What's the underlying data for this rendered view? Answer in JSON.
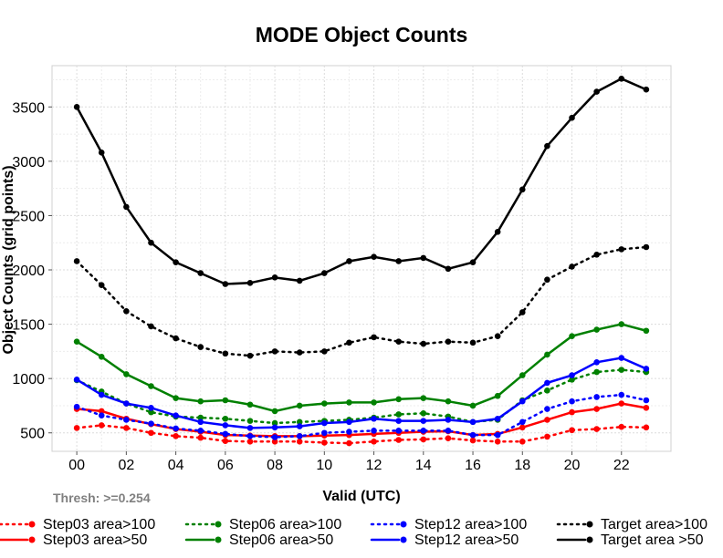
{
  "chart_data": {
    "type": "line",
    "title": "MODE Object Counts",
    "xlabel": "Valid (UTC)",
    "ylabel": "Object Counts (grid points)",
    "annotation": "Thresh: >=0.254",
    "x": [
      0,
      1,
      2,
      3,
      4,
      5,
      6,
      7,
      8,
      9,
      10,
      11,
      12,
      13,
      14,
      15,
      16,
      17,
      18,
      19,
      20,
      21,
      22,
      23
    ],
    "x_ticks": [
      0,
      2,
      4,
      6,
      8,
      10,
      12,
      14,
      16,
      18,
      20,
      22
    ],
    "x_tick_labels": [
      "00",
      "02",
      "04",
      "06",
      "08",
      "10",
      "12",
      "14",
      "16",
      "18",
      "20",
      "22"
    ],
    "xlim": [
      -1,
      24
    ],
    "ylim": [
      330,
      3880
    ],
    "y_ticks": [
      500,
      1000,
      1500,
      2000,
      2500,
      3000,
      3500
    ],
    "y_tick_labels": [
      "500",
      "1000",
      "1500",
      "2000",
      "2500",
      "3000",
      "3500"
    ],
    "grid": true,
    "series": [
      {
        "name": "Step03 area>100",
        "color": "#ff0000",
        "style": "dotted",
        "values": [
          545,
          570,
          545,
          500,
          470,
          455,
          425,
          420,
          420,
          420,
          410,
          405,
          420,
          435,
          440,
          450,
          430,
          420,
          420,
          465,
          525,
          535,
          555,
          550
        ]
      },
      {
        "name": "Step03 area>50",
        "color": "#ff0000",
        "style": "solid",
        "values": [
          720,
          700,
          630,
          580,
          535,
          510,
          480,
          475,
          470,
          470,
          475,
          480,
          490,
          500,
          510,
          515,
          480,
          490,
          550,
          620,
          690,
          720,
          770,
          730
        ]
      },
      {
        "name": "Step06 area>100",
        "color": "#008000",
        "style": "dotted",
        "values": [
          985,
          880,
          770,
          690,
          650,
          640,
          630,
          610,
          590,
          600,
          610,
          620,
          640,
          670,
          680,
          650,
          600,
          620,
          800,
          890,
          990,
          1060,
          1080,
          1060
        ]
      },
      {
        "name": "Step06 area>50",
        "color": "#008000",
        "style": "solid",
        "values": [
          1340,
          1200,
          1040,
          930,
          820,
          790,
          800,
          760,
          700,
          750,
          770,
          780,
          780,
          810,
          820,
          790,
          750,
          840,
          1030,
          1220,
          1390,
          1450,
          1500,
          1440
        ]
      },
      {
        "name": "Step12 area>100",
        "color": "#0000ff",
        "style": "dotted",
        "values": [
          740,
          660,
          620,
          585,
          540,
          520,
          490,
          470,
          460,
          470,
          500,
          510,
          520,
          520,
          520,
          520,
          480,
          480,
          600,
          720,
          790,
          830,
          850,
          800
        ]
      },
      {
        "name": "Step12 area>50",
        "color": "#0000ff",
        "style": "solid",
        "values": [
          990,
          850,
          770,
          730,
          660,
          600,
          570,
          545,
          550,
          560,
          590,
          600,
          630,
          610,
          610,
          620,
          600,
          630,
          790,
          960,
          1030,
          1150,
          1190,
          1090
        ]
      },
      {
        "name": "Target area>100",
        "color": "#000000",
        "style": "dotted",
        "values": [
          2080,
          1860,
          1620,
          1480,
          1370,
          1290,
          1230,
          1210,
          1250,
          1240,
          1250,
          1330,
          1380,
          1340,
          1320,
          1340,
          1330,
          1390,
          1610,
          1910,
          2030,
          2140,
          2190,
          2210
        ]
      },
      {
        "name": "Target area >50",
        "color": "#000000",
        "style": "solid",
        "values": [
          3500,
          3080,
          2580,
          2250,
          2070,
          1970,
          1870,
          1880,
          1930,
          1900,
          1970,
          2080,
          2120,
          2080,
          2110,
          2010,
          2070,
          2350,
          2740,
          3140,
          3400,
          3640,
          3760,
          3660
        ]
      }
    ],
    "legend_position": "bottom"
  }
}
